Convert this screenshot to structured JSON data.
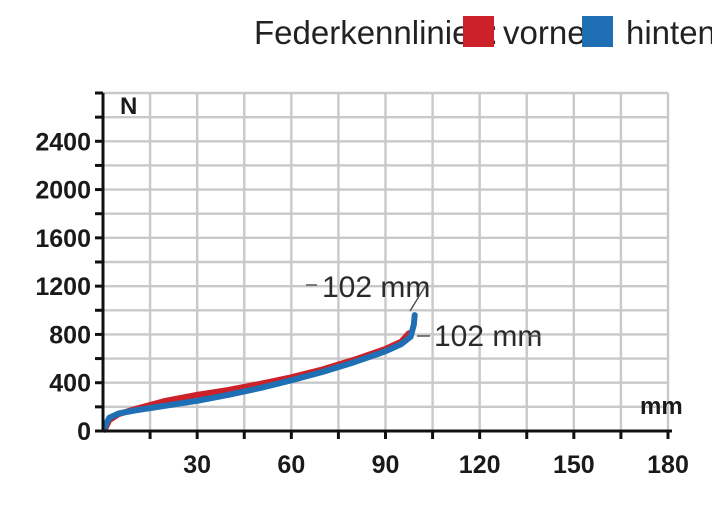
{
  "legend": {
    "title": "Federkennlinien:",
    "items": [
      {
        "label": "vorne",
        "color": "#cc2128"
      },
      {
        "label": "hinten",
        "color": "#1f6fb5"
      }
    ]
  },
  "chart_data": {
    "type": "line",
    "xlabel": "mm",
    "ylabel": "N",
    "xlim": [
      0,
      180
    ],
    "ylim": [
      0,
      2800
    ],
    "xticks": [
      30,
      60,
      90,
      120,
      150,
      180
    ],
    "yticks": [
      0,
      400,
      800,
      1200,
      1600,
      2000,
      2400
    ],
    "x_gridlines": [
      0,
      15,
      30,
      45,
      60,
      75,
      90,
      105,
      120,
      135,
      150,
      165,
      180
    ],
    "y_gridlines": [
      0,
      200,
      400,
      600,
      800,
      1000,
      1200,
      1400,
      1600,
      1800,
      2000,
      2200,
      2400,
      2600,
      2800
    ],
    "grid": true,
    "series": [
      {
        "name": "vorne",
        "color": "#cc2128",
        "x": [
          0.5,
          2,
          5,
          10,
          20,
          30,
          40,
          50,
          60,
          70,
          80,
          90,
          95,
          97.5
        ],
        "y": [
          10,
          90,
          140,
          180,
          250,
          300,
          340,
          390,
          445,
          510,
          590,
          680,
          740,
          810
        ]
      },
      {
        "name": "hinten",
        "color": "#1f6fb5",
        "x": [
          0.5,
          2,
          5,
          10,
          20,
          30,
          40,
          50,
          60,
          70,
          80,
          90,
          95,
          98,
          99,
          99.3
        ],
        "y": [
          30,
          110,
          145,
          170,
          210,
          250,
          300,
          355,
          420,
          490,
          570,
          660,
          720,
          780,
          880,
          960
        ]
      }
    ],
    "annotations": [
      {
        "text": "102 mm",
        "series": "hinten"
      },
      {
        "text": "102 mm",
        "series": "vorne"
      }
    ]
  }
}
